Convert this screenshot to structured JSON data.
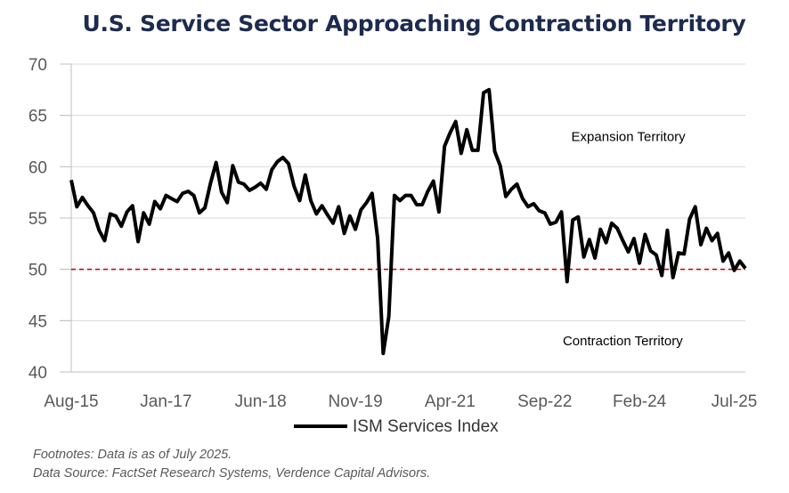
{
  "chart_data": {
    "type": "line",
    "title": "U.S. Service Sector Approaching Contraction Territory",
    "xlabel": "",
    "ylabel": "",
    "ylim": [
      40,
      70
    ],
    "yticks": [
      40,
      45,
      50,
      55,
      60,
      65,
      70
    ],
    "x_tick_labels": [
      "Aug-15",
      "Jan-17",
      "Jun-18",
      "Nov-19",
      "Apr-21",
      "Sep-22",
      "Feb-24",
      "Jul-25"
    ],
    "x_tick_month_index": [
      0,
      17,
      34,
      51,
      68,
      85,
      102,
      119
    ],
    "grid": true,
    "series": [
      {
        "name": "ISM Services Index",
        "color": "#000000",
        "start": "Aug-15",
        "values": [
          58.7,
          56.1,
          57.0,
          56.2,
          55.5,
          53.8,
          52.8,
          55.4,
          55.2,
          54.2,
          55.6,
          56.2,
          52.7,
          55.5,
          54.4,
          56.6,
          55.9,
          57.2,
          56.9,
          56.6,
          57.4,
          57.6,
          57.2,
          55.5,
          56.0,
          58.4,
          60.4,
          57.5,
          56.5,
          60.1,
          58.5,
          58.3,
          57.7,
          58.0,
          58.4,
          57.8,
          59.7,
          60.5,
          60.9,
          60.3,
          58.1,
          56.7,
          59.2,
          56.7,
          55.4,
          56.2,
          55.3,
          54.5,
          56.1,
          53.5,
          55.2,
          53.9,
          55.8,
          56.5,
          57.4,
          53.0,
          41.8,
          45.4,
          57.2,
          56.7,
          57.2,
          57.2,
          56.3,
          56.3,
          57.6,
          58.6,
          55.6,
          62.0,
          63.3,
          64.4,
          61.3,
          63.6,
          61.6,
          61.6,
          67.2,
          67.5,
          61.5,
          60.1,
          57.1,
          57.8,
          58.3,
          56.9,
          56.1,
          56.4,
          55.7,
          55.5,
          54.4,
          54.6,
          55.6,
          48.8,
          54.8,
          55.1,
          51.2,
          52.9,
          51.1,
          53.9,
          52.6,
          54.5,
          54.0,
          52.8,
          51.7,
          53.0,
          50.6,
          53.4,
          51.8,
          51.4,
          49.4,
          53.8,
          49.2,
          51.6,
          51.5,
          54.9,
          56.1,
          52.4,
          54.0,
          52.8,
          53.5,
          50.8,
          51.6,
          49.9,
          50.8,
          50.1
        ]
      }
    ],
    "reference_line": {
      "value": 50,
      "color": "#c00000",
      "style": "dashed"
    },
    "annotations": [
      {
        "text": "Expansion Territory",
        "month_index": 100,
        "y": 62.5
      },
      {
        "text": "Contraction Territory",
        "month_index": 99,
        "y": 42.6
      }
    ],
    "legend": {
      "entries": [
        "ISM Services Index"
      ],
      "placement": "bottom-center"
    }
  },
  "footnotes": {
    "line1": "Footnotes: Data is as of July 2025.",
    "line2": "Data Source: FactSet Research Systems, Verdence Capital Advisors."
  }
}
